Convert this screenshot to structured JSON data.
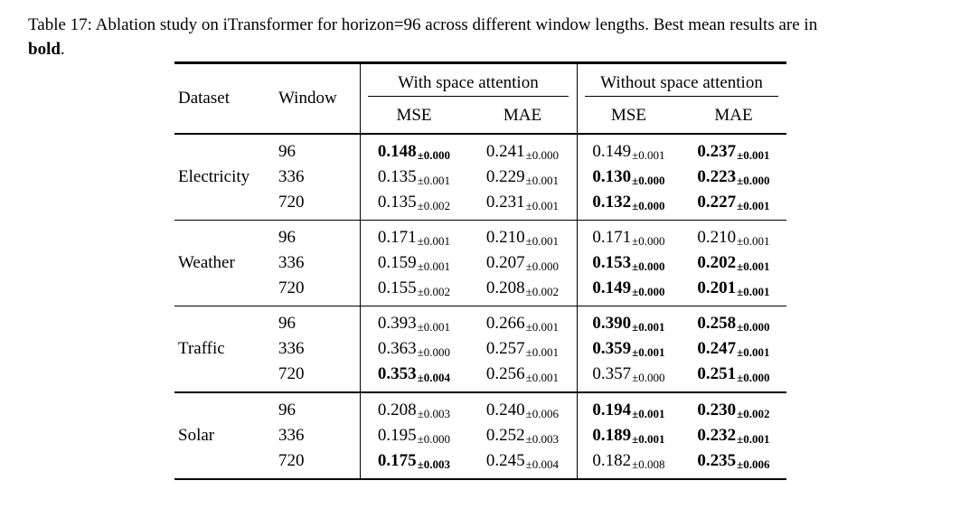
{
  "caption": {
    "line1": "Table 17: Ablation study on iTransformer for horizon=96 across different window lengths. Best mean results are in",
    "bold_word": "bold",
    "after_bold": "."
  },
  "table": {
    "headers": {
      "dataset": "Dataset",
      "window": "Window",
      "group_with": "With space attention",
      "group_without": "Without space attention",
      "mse": "MSE",
      "mae": "MAE"
    },
    "column_names": [
      "mse-with",
      "mae-with",
      "mse-without",
      "mae-without"
    ],
    "groups": [
      {
        "dataset": "Electricity",
        "rows": [
          {
            "window": "96",
            "cells": [
              {
                "mean": "0.148",
                "std": "±0.000",
                "bold": true
              },
              {
                "mean": "0.241",
                "std": "±0.000",
                "bold": false
              },
              {
                "mean": "0.149",
                "std": "±0.001",
                "bold": false
              },
              {
                "mean": "0.237",
                "std": "±0.001",
                "bold": true
              }
            ]
          },
          {
            "window": "336",
            "cells": [
              {
                "mean": "0.135",
                "std": "±0.001",
                "bold": false
              },
              {
                "mean": "0.229",
                "std": "±0.001",
                "bold": false
              },
              {
                "mean": "0.130",
                "std": "±0.000",
                "bold": true
              },
              {
                "mean": "0.223",
                "std": "±0.000",
                "bold": true
              }
            ]
          },
          {
            "window": "720",
            "cells": [
              {
                "mean": "0.135",
                "std": "±0.002",
                "bold": false
              },
              {
                "mean": "0.231",
                "std": "±0.001",
                "bold": false
              },
              {
                "mean": "0.132",
                "std": "±0.000",
                "bold": true
              },
              {
                "mean": "0.227",
                "std": "±0.001",
                "bold": true
              }
            ]
          }
        ]
      },
      {
        "dataset": "Weather",
        "rows": [
          {
            "window": "96",
            "cells": [
              {
                "mean": "0.171",
                "std": "±0.001",
                "bold": false
              },
              {
                "mean": "0.210",
                "std": "±0.001",
                "bold": false
              },
              {
                "mean": "0.171",
                "std": "±0.000",
                "bold": false
              },
              {
                "mean": "0.210",
                "std": "±0.001",
                "bold": false
              }
            ]
          },
          {
            "window": "336",
            "cells": [
              {
                "mean": "0.159",
                "std": "±0.001",
                "bold": false
              },
              {
                "mean": "0.207",
                "std": "±0.000",
                "bold": false
              },
              {
                "mean": "0.153",
                "std": "±0.000",
                "bold": true
              },
              {
                "mean": "0.202",
                "std": "±0.001",
                "bold": true
              }
            ]
          },
          {
            "window": "720",
            "cells": [
              {
                "mean": "0.155",
                "std": "±0.002",
                "bold": false
              },
              {
                "mean": "0.208",
                "std": "±0.002",
                "bold": false
              },
              {
                "mean": "0.149",
                "std": "±0.000",
                "bold": true
              },
              {
                "mean": "0.201",
                "std": "±0.001",
                "bold": true
              }
            ]
          }
        ]
      },
      {
        "dataset": "Traffic",
        "rows": [
          {
            "window": "96",
            "cells": [
              {
                "mean": "0.393",
                "std": "±0.001",
                "bold": false
              },
              {
                "mean": "0.266",
                "std": "±0.001",
                "bold": false
              },
              {
                "mean": "0.390",
                "std": "±0.001",
                "bold": true
              },
              {
                "mean": "0.258",
                "std": "±0.000",
                "bold": true
              }
            ]
          },
          {
            "window": "336",
            "cells": [
              {
                "mean": "0.363",
                "std": "±0.000",
                "bold": false
              },
              {
                "mean": "0.257",
                "std": "±0.001",
                "bold": false
              },
              {
                "mean": "0.359",
                "std": "±0.001",
                "bold": true
              },
              {
                "mean": "0.247",
                "std": "±0.001",
                "bold": true
              }
            ]
          },
          {
            "window": "720",
            "cells": [
              {
                "mean": "0.353",
                "std": "±0.004",
                "bold": true
              },
              {
                "mean": "0.256",
                "std": "±0.001",
                "bold": false
              },
              {
                "mean": "0.357",
                "std": "±0.000",
                "bold": false
              },
              {
                "mean": "0.251",
                "std": "±0.000",
                "bold": true
              }
            ]
          }
        ]
      },
      {
        "dataset": "Solar",
        "rows": [
          {
            "window": "96",
            "cells": [
              {
                "mean": "0.208",
                "std": "±0.003",
                "bold": false
              },
              {
                "mean": "0.240",
                "std": "±0.006",
                "bold": false
              },
              {
                "mean": "0.194",
                "std": "±0.001",
                "bold": true
              },
              {
                "mean": "0.230",
                "std": "±0.002",
                "bold": true
              }
            ]
          },
          {
            "window": "336",
            "cells": [
              {
                "mean": "0.195",
                "std": "±0.000",
                "bold": false
              },
              {
                "mean": "0.252",
                "std": "±0.003",
                "bold": false
              },
              {
                "mean": "0.189",
                "std": "±0.001",
                "bold": true
              },
              {
                "mean": "0.232",
                "std": "±0.001",
                "bold": true
              }
            ]
          },
          {
            "window": "720",
            "cells": [
              {
                "mean": "0.175",
                "std": "±0.003",
                "bold": true
              },
              {
                "mean": "0.245",
                "std": "±0.004",
                "bold": false
              },
              {
                "mean": "0.182",
                "std": "±0.008",
                "bold": false
              },
              {
                "mean": "0.235",
                "std": "±0.006",
                "bold": true
              }
            ]
          }
        ]
      }
    ]
  }
}
